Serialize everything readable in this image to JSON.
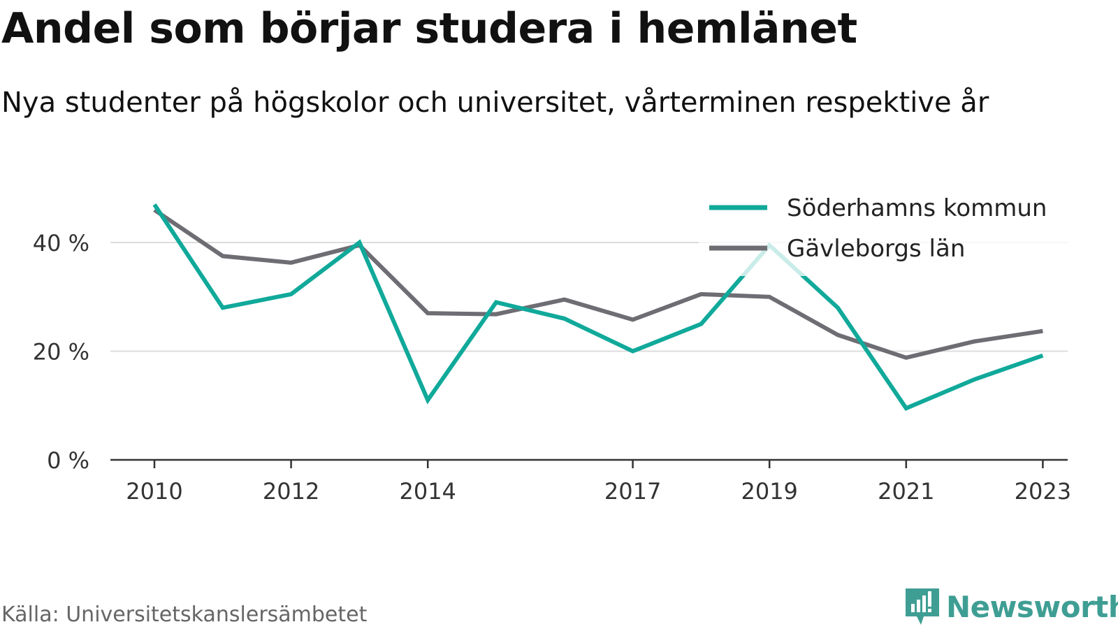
{
  "title": "Andel som börjar studera i hemlänet",
  "subtitle": "Nya studenter på högskolor och universitet, vårterminen respektive år",
  "source": "Källa: Universitetskanslersämbetet",
  "brand": "Newsworthy",
  "colors": {
    "soderhamn": "#10a99a",
    "gavleborg": "#6e6d73",
    "grid": "#dcdcdc",
    "axis": "#333333",
    "brand": "#3f9e94"
  },
  "chart_data": {
    "type": "line",
    "x": [
      2010,
      2011,
      2012,
      2013,
      2014,
      2015,
      2016,
      2017,
      2018,
      2019,
      2020,
      2021,
      2022,
      2023
    ],
    "x_tick_labels": [
      "2010",
      "2012",
      "2014",
      "2017",
      "2019",
      "2021",
      "2023"
    ],
    "y_tick_labels": [
      "0 %",
      "20 %",
      "40 %"
    ],
    "y_ticks": [
      0,
      20,
      40
    ],
    "ylim": [
      0,
      50
    ],
    "grid": true,
    "legend_position": "top-right",
    "series": [
      {
        "name": "Söderhamns kommun",
        "values": [
          47.0,
          28.0,
          30.5,
          40.0,
          11.0,
          29.0,
          26.0,
          20.0,
          25.0,
          39.5,
          28.0,
          9.5,
          14.8,
          19.2
        ]
      },
      {
        "name": "Gävleborgs län",
        "values": [
          46.0,
          37.5,
          36.3,
          39.5,
          27.0,
          26.8,
          29.5,
          25.8,
          30.5,
          30.0,
          23.0,
          18.8,
          21.8,
          23.7
        ]
      }
    ]
  }
}
